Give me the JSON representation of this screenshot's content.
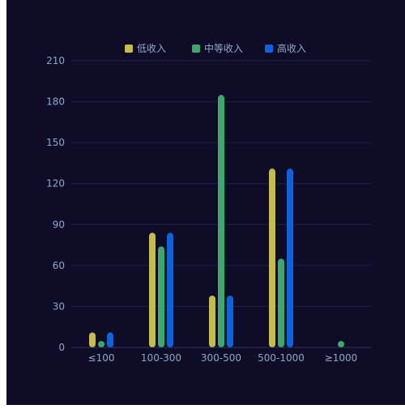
{
  "colors": {
    "background": "#0e0c26",
    "low_income": "#c5be46",
    "mid_income": "#3aa96e",
    "high_income": "#0a63e0"
  },
  "chart_data": {
    "type": "bar",
    "categories": [
      "≤100",
      "100-300",
      "300-500",
      "500-1000",
      "≥1000"
    ],
    "series": [
      {
        "name": "低收入",
        "color": "#c5be46",
        "values": [
          11,
          84,
          38,
          131,
          0
        ]
      },
      {
        "name": "中等收入",
        "color": "#3aa96e",
        "values": [
          2,
          74,
          185,
          65,
          3
        ]
      },
      {
        "name": "高收入",
        "color": "#0a63e0",
        "values": [
          11,
          84,
          38,
          131,
          0
        ]
      }
    ],
    "ylim": [
      0,
      210
    ],
    "yticks": [
      0,
      30,
      60,
      90,
      120,
      150,
      180,
      210
    ],
    "grid": true,
    "legend_position": "top-center"
  }
}
